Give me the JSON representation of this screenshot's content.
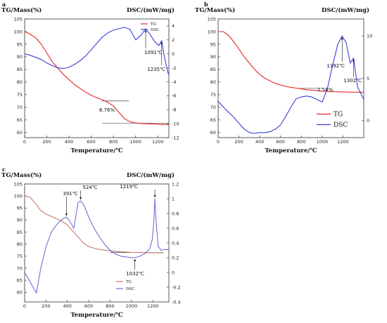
{
  "chart_data": [
    {
      "panel": "a",
      "type": "line",
      "title": "",
      "left_axis_label": "TG/Mass(%)",
      "right_axis_label": "DSC/(mW/mg)",
      "xlabel": "Temperature/℃",
      "xlim": [
        0,
        1300
      ],
      "xticks": [
        0,
        200,
        400,
        600,
        800,
        1000,
        1200
      ],
      "ylim_left": [
        58,
        105
      ],
      "yticks_left": [
        60,
        65,
        70,
        75,
        80,
        85,
        90,
        95,
        100,
        105
      ],
      "ylim_right": [
        -12,
        5
      ],
      "yticks_right": [
        -12,
        -10,
        -8,
        -6,
        -4,
        -2,
        0,
        2,
        4
      ],
      "legend": "top-right",
      "series": [
        {
          "name": "TG",
          "axis": "left",
          "color": "#e32626",
          "x": [
            0,
            50,
            100,
            150,
            200,
            250,
            300,
            350,
            400,
            450,
            500,
            550,
            600,
            650,
            700,
            750,
            800,
            850,
            900,
            950,
            1000,
            1050,
            1100,
            1150,
            1200,
            1250,
            1300
          ],
          "y": [
            100,
            99,
            97.5,
            95,
            91.5,
            88,
            85.5,
            83,
            81,
            79,
            77.5,
            76,
            74.8,
            73.8,
            73,
            72,
            70.5,
            68,
            65.5,
            64.3,
            63.8,
            63.6,
            63.5,
            63.4,
            63.3,
            63.2,
            63.2
          ]
        },
        {
          "name": "DSC",
          "axis": "right",
          "color": "#3a3fd6",
          "x": [
            0,
            50,
            100,
            150,
            200,
            250,
            300,
            350,
            400,
            450,
            500,
            550,
            600,
            650,
            700,
            750,
            800,
            850,
            900,
            950,
            1000,
            1050,
            1091,
            1130,
            1170,
            1210,
            1235,
            1260,
            1290,
            1300
          ],
          "y": [
            0,
            -0.2,
            -0.5,
            -0.8,
            -1.3,
            -1.7,
            -2,
            -2.1,
            -1.9,
            -1.5,
            -1,
            -0.3,
            0.6,
            1.5,
            2.4,
            3,
            3.4,
            3.6,
            3.8,
            3.5,
            2,
            2.7,
            3.6,
            2.8,
            1.8,
            1.2,
            1.9,
            -0.5,
            -2.6,
            -3
          ]
        }
      ],
      "annotations": [
        {
          "text": "1091℃",
          "x": 1091,
          "y": 3.6,
          "axis": "right"
        },
        {
          "text": "1235℃",
          "x": 1235,
          "y": 1.9,
          "axis": "right"
        },
        {
          "text": "8.76%"
        }
      ],
      "guide_lines": [
        {
          "axis": "left",
          "y": 72.5,
          "x": [
            700,
            940
          ]
        },
        {
          "axis": "left",
          "y": 63.7,
          "x": [
            700,
            1300
          ]
        }
      ]
    },
    {
      "panel": "b",
      "type": "line",
      "title": "",
      "left_axis_label": "TG/Mass(%)",
      "right_axis_label": "DSC/(mW/mg)",
      "xlabel": "Temperature/℃",
      "xlim": [
        0,
        1400
      ],
      "xticks": [
        0,
        200,
        400,
        600,
        800,
        1000,
        1200
      ],
      "ylim_left": [
        58,
        105
      ],
      "yticks_left": [
        60,
        65,
        70,
        75,
        80,
        85,
        90,
        95,
        100,
        105
      ],
      "ylim_right": [
        -2,
        12
      ],
      "yticks_right": [
        0,
        5,
        10
      ],
      "legend": "bottom-left",
      "series": [
        {
          "name": "TG",
          "axis": "left",
          "color": "#e32626",
          "x": [
            0,
            50,
            100,
            150,
            200,
            250,
            300,
            350,
            400,
            450,
            500,
            550,
            600,
            650,
            700,
            750,
            800,
            850,
            900,
            950,
            1000,
            1100,
            1200,
            1300,
            1400
          ],
          "y": [
            100,
            100,
            98.5,
            96,
            93,
            90,
            87.5,
            85,
            83,
            81.5,
            80.5,
            79.5,
            78.8,
            78.3,
            77.9,
            77.6,
            77.3,
            77,
            76.8,
            76.6,
            76.4,
            76.2,
            76.1,
            76,
            76
          ]
        },
        {
          "name": "DSC",
          "axis": "right",
          "color": "#3a3fd6",
          "x": [
            0,
            50,
            100,
            150,
            200,
            250,
            300,
            350,
            400,
            450,
            500,
            550,
            600,
            650,
            700,
            750,
            800,
            850,
            900,
            950,
            1000,
            1050,
            1100,
            1150,
            1192,
            1230,
            1270,
            1302,
            1340,
            1400
          ],
          "y": [
            2.3,
            1.6,
            1,
            0.4,
            -0.3,
            -1,
            -1.4,
            -1.5,
            -1.4,
            -1.4,
            -1.3,
            -1,
            -0.5,
            0.5,
            1.6,
            2.6,
            2.8,
            2.9,
            2.8,
            2.5,
            2.2,
            3.8,
            6.5,
            9,
            10,
            9.2,
            6.8,
            7.4,
            4,
            2.5
          ]
        }
      ],
      "annotations": [
        {
          "text": "1192℃",
          "x": 1192,
          "y": 10,
          "axis": "right"
        },
        {
          "text": "1302℃",
          "x": 1302,
          "y": 7.4,
          "axis": "right"
        },
        {
          "text": "1.56%"
        }
      ],
      "guide_lines": [
        {
          "axis": "left",
          "y": 77.5,
          "x": [
            780,
            1000
          ]
        }
      ]
    },
    {
      "panel": "c",
      "type": "line",
      "title": "",
      "left_axis_label": "TG/Mass(%)",
      "right_axis_label": "DSC/(mW/mg)",
      "xlabel": "Temperature/℃",
      "xlim": [
        0,
        1350
      ],
      "xticks": [
        0,
        200,
        400,
        600,
        800,
        1000,
        1200
      ],
      "ylim_left": [
        56,
        105
      ],
      "yticks_left": [
        60,
        65,
        70,
        75,
        80,
        85,
        90,
        95,
        100,
        105
      ],
      "ylim_right": [
        -0.4,
        1.2
      ],
      "yticks_right": [
        -0.4,
        -0.2,
        0,
        0.2,
        0.4,
        0.6,
        0.8,
        1,
        1.2
      ],
      "legend": "bottom-center",
      "series": [
        {
          "name": "TG",
          "axis": "left",
          "color": "#c97a6e",
          "x": [
            0,
            50,
            100,
            150,
            200,
            250,
            300,
            350,
            400,
            450,
            500,
            550,
            600,
            650,
            700,
            800,
            900,
            1000,
            1100,
            1200,
            1300
          ],
          "y": [
            100,
            99.5,
            97,
            94,
            92.5,
            91.5,
            90.5,
            89.5,
            88,
            85.5,
            83,
            80.5,
            79,
            78.3,
            77.8,
            77.2,
            76.8,
            76.6,
            76.5,
            76.4,
            76.4
          ]
        },
        {
          "name": "DSC",
          "axis": "right",
          "color": "#6f6fd8",
          "x": [
            0,
            40,
            80,
            110,
            150,
            200,
            250,
            300,
            350,
            391,
            420,
            460,
            500,
            524,
            560,
            600,
            650,
            700,
            750,
            800,
            850,
            900,
            950,
            1000,
            1032,
            1080,
            1130,
            1170,
            1195,
            1210,
            1219,
            1230,
            1250,
            1280,
            1300,
            1350
          ],
          "y": [
            0,
            -0.1,
            -0.2,
            -0.28,
            0.05,
            0.35,
            0.55,
            0.65,
            0.72,
            0.75,
            0.7,
            0.6,
            0.95,
            0.97,
            0.9,
            0.75,
            0.6,
            0.48,
            0.38,
            0.3,
            0.25,
            0.22,
            0.21,
            0.2,
            0.2,
            0.22,
            0.26,
            0.32,
            0.45,
            0.7,
            1.0,
            0.7,
            0.35,
            0.3,
            0.31,
            0.31
          ]
        }
      ],
      "annotations": [
        {
          "text": "391℃",
          "x": 391,
          "y": 0.75,
          "axis": "right"
        },
        {
          "text": "524℃",
          "x": 524,
          "y": 0.97,
          "axis": "right"
        },
        {
          "text": "1219℃",
          "x": 1219,
          "y": 1.0,
          "axis": "right"
        },
        {
          "text": "1032℃",
          "x": 1032,
          "y": 0.2,
          "axis": "right"
        }
      ],
      "guide_lines": [
        {
          "axis": "left",
          "y": 76.5,
          "x": [
            800,
            1300
          ]
        }
      ]
    }
  ]
}
